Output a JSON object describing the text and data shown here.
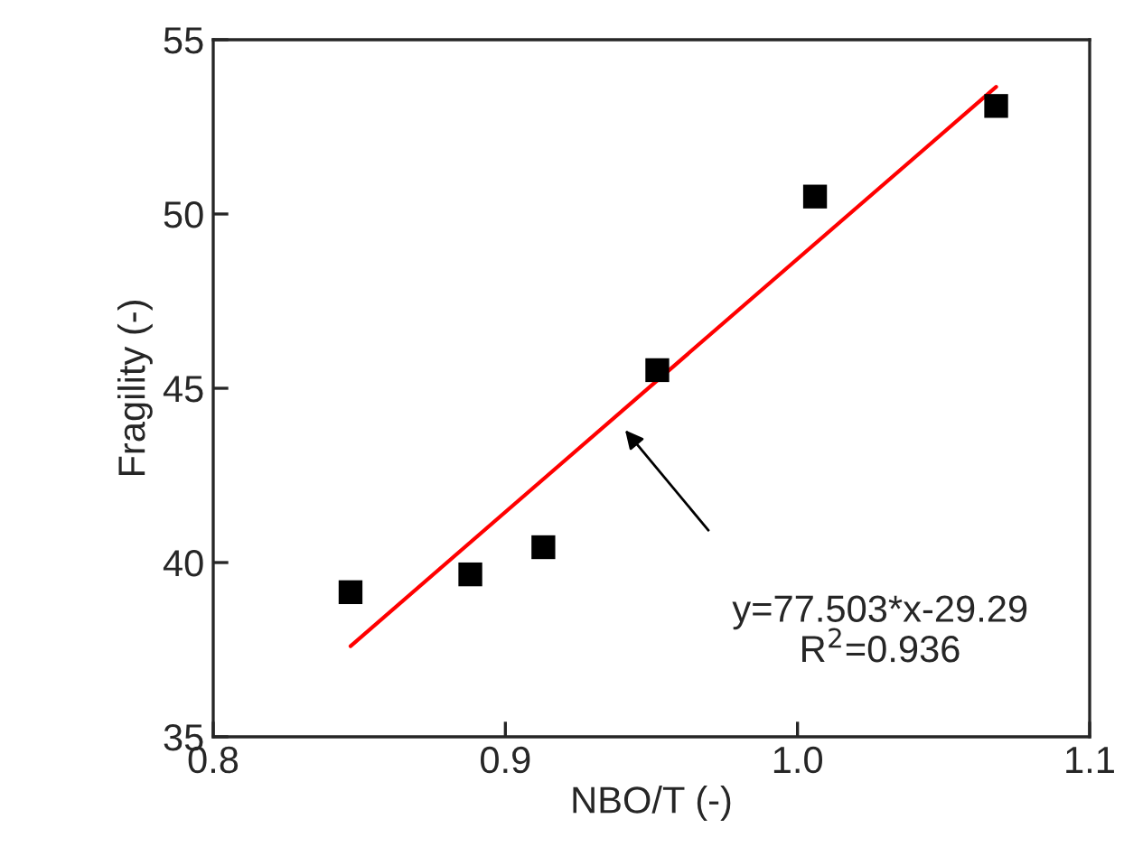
{
  "chart_data": {
    "type": "scatter",
    "xlabel": "NBO/T (-)",
    "ylabel": "Fragility (-)",
    "xlim": [
      0.8,
      1.1
    ],
    "xticks": [
      0.8,
      0.9,
      {
        "value": 1.0,
        "label": "1.0"
      },
      1.1
    ],
    "ylim": [
      35,
      55
    ],
    "yticks": [
      35,
      40,
      45,
      50,
      55
    ],
    "grid": false,
    "legend": false,
    "series": [
      {
        "color": "#000000",
        "marker": "square",
        "x": [
          0.847,
          0.888,
          0.913,
          0.952,
          1.006,
          1.068
        ],
        "values": [
          39.15,
          39.66,
          40.44,
          45.52,
          50.5,
          53.1
        ]
      },
      {
        "type": "line",
        "marker": "none",
        "color": "#ff0000",
        "x": [
          0.847,
          1.068
        ],
        "values": [
          37.6,
          53.65
        ]
      }
    ],
    "annotations": [
      "y=77.503*x-29.29\nR$^{2}$=0.936"
    ]
  }
}
